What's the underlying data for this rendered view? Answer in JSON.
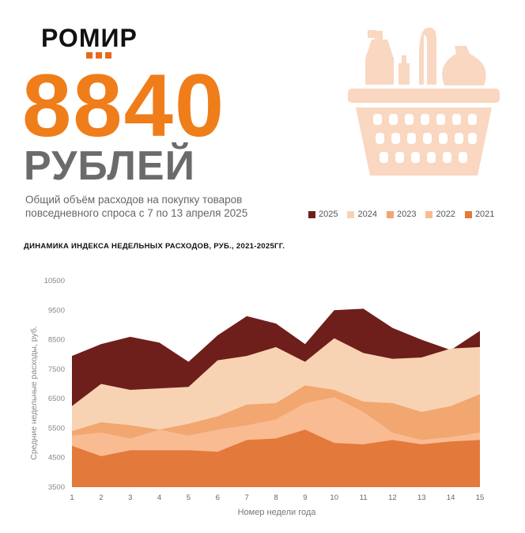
{
  "header": {
    "logo": "РОМИР",
    "amount": "8840",
    "unit": "РУБЛЕЙ",
    "subtitle": "Общий объём расходов на покупку товаров повседневного спроса с 7 по 13 апреля 2025"
  },
  "icons": {
    "basket": "shopping-basket-icon"
  },
  "colors": {
    "accent": "#ef7d1a",
    "2025": "#6e1f1b",
    "2024": "#f8d3b3",
    "2023": "#f2a670",
    "2022": "#f9bb92",
    "2021": "#e4793c"
  },
  "chart_data": {
    "type": "area",
    "title": "ДИНАМИКА ИНДЕКСА НЕДЕЛЬНЫХ  РАСХОДОВ,  РУБ., 2021-2025ГГ.",
    "xlabel": "Номер недели года",
    "ylabel": "Средние недельные расходы, руб.",
    "x": [
      1,
      2,
      3,
      4,
      5,
      6,
      7,
      8,
      9,
      10,
      11,
      12,
      13,
      14,
      15
    ],
    "ylim": [
      3500,
      10500
    ],
    "yticks": [
      3500,
      4500,
      5500,
      6500,
      7500,
      8500,
      9500,
      10500
    ],
    "legend_position": "top-right",
    "legend": [
      "2025",
      "2024",
      "2023",
      "2022",
      "2021"
    ],
    "grid": false,
    "series": [
      {
        "name": "2025",
        "values": [
          7950,
          8350,
          8600,
          8400,
          7750,
          8650,
          9300,
          9050,
          8350,
          9500,
          9550,
          8900,
          8500,
          8150,
          8800
        ]
      },
      {
        "name": "2024",
        "values": [
          6250,
          7000,
          6800,
          6850,
          6900,
          7800,
          7950,
          8250,
          7750,
          8550,
          8050,
          7850,
          7900,
          8200,
          8250
        ]
      },
      {
        "name": "2023",
        "values": [
          5400,
          5700,
          5600,
          5450,
          5650,
          5900,
          6300,
          6350,
          6950,
          6800,
          6400,
          6350,
          6050,
          6250,
          6650
        ]
      },
      {
        "name": "2022",
        "values": [
          5250,
          5350,
          5150,
          5450,
          5250,
          5450,
          5600,
          5800,
          6350,
          6550,
          6050,
          5350,
          5100,
          5200,
          5350
        ]
      },
      {
        "name": "2021",
        "values": [
          4900,
          4550,
          4750,
          4750,
          4750,
          4700,
          5100,
          5150,
          5450,
          5000,
          4950,
          5100,
          4950,
          5050,
          5100
        ]
      }
    ]
  }
}
